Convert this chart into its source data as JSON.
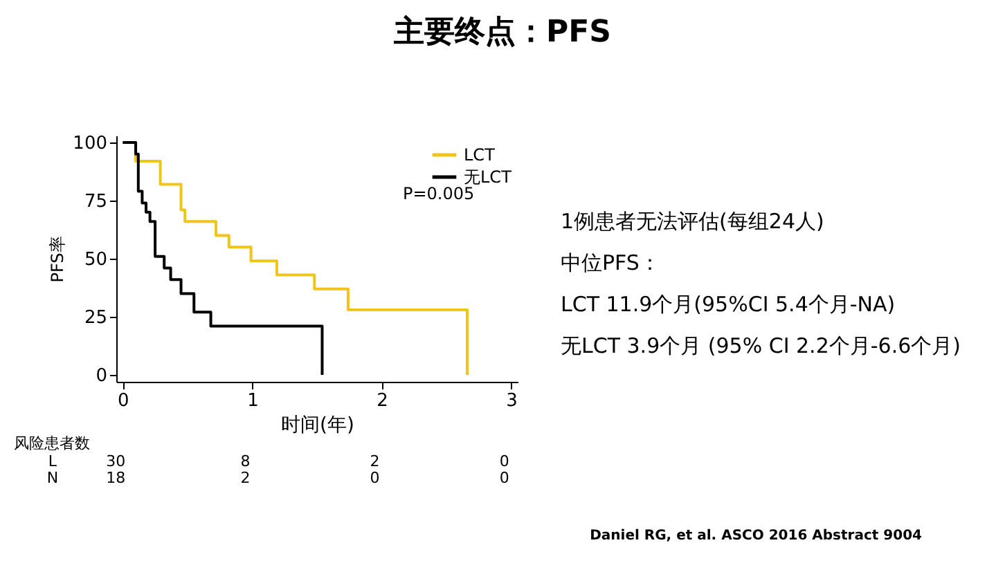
{
  "chart_data": {
    "type": "step",
    "title": "主要终点：PFS",
    "xlabel": "时间(年)",
    "ylabel": "PFS率",
    "xlim": [
      -0.05,
      3.05
    ],
    "xticks": [
      0,
      1,
      2,
      3
    ],
    "ylim": [
      -3,
      103
    ],
    "yticks": [
      0,
      25,
      50,
      75,
      100
    ],
    "grid": false,
    "legend": "top right",
    "series": [
      {
        "name": "LCT",
        "color": "#f0c419",
        "x": [
          0,
          0.1,
          0.29,
          0.45,
          0.48,
          0.72,
          0.82,
          0.99,
          1.19,
          1.48,
          1.74,
          2.66
        ],
        "values": [
          100,
          92,
          82,
          71,
          66,
          60,
          55,
          49,
          43,
          37,
          28,
          0
        ]
      },
      {
        "name": "无LCT",
        "color": "#000000",
        "x": [
          0,
          0.1,
          0.12,
          0.15,
          0.18,
          0.21,
          0.25,
          0.32,
          0.37,
          0.45,
          0.55,
          0.68,
          1.54
        ],
        "values": [
          100,
          95,
          79,
          74,
          70,
          66,
          51,
          46,
          41,
          35,
          27,
          21,
          0
        ]
      }
    ],
    "annotations": [
      "P=0.005",
      "1例患者无法评估(每组24人)",
      "中位PFS：",
      "LCT 11.9个月(95%CI 5.4个月-NA)",
      "无LCT 3.9个月 (95% CI 2.2个月-6.6个月)",
      "风险患者数",
      "L",
      "30",
      "8",
      "2",
      "0",
      "N",
      "18",
      "2",
      "0",
      "0",
      "Daniel RG, et al. ASCO 2016 Abstract 9004"
    ]
  }
}
